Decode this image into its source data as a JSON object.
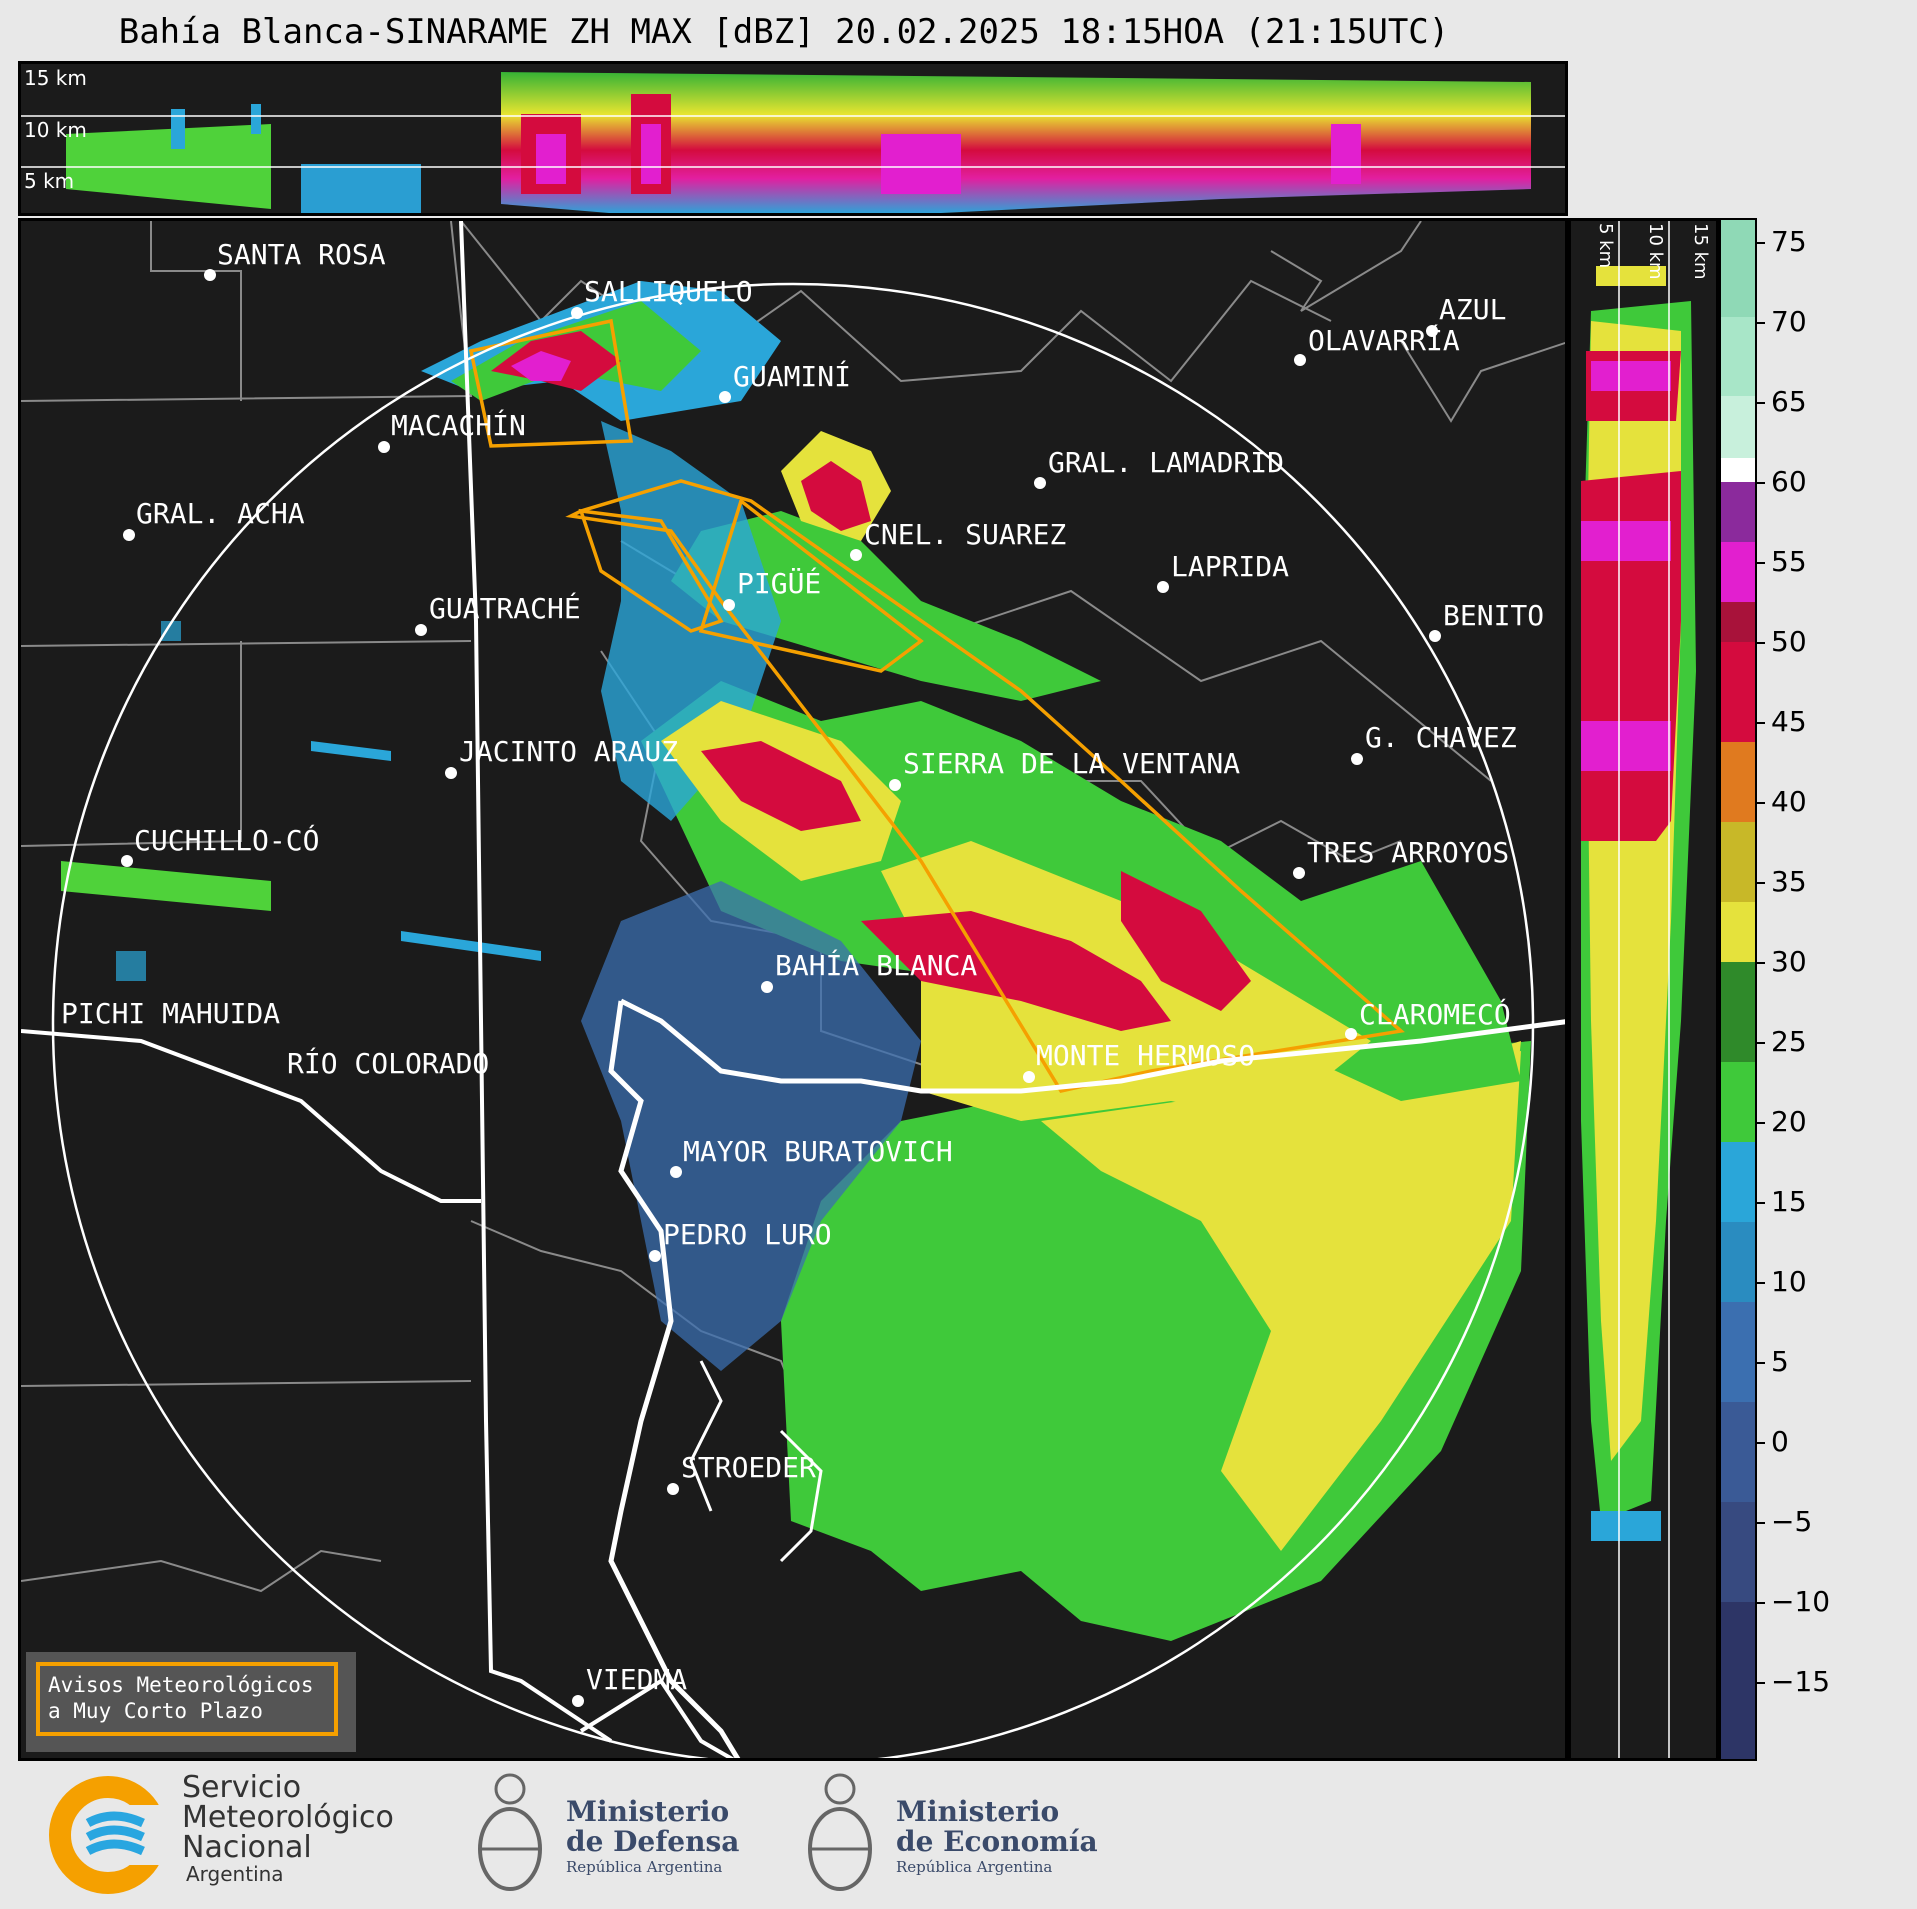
{
  "title": "Bahía Blanca-SINARAME ZH MAX [dBZ] 20.02.2025 18:15HOA (21:15UTC)",
  "top_panel": {
    "km_labels": [
      "15 km",
      "10 km",
      "5 km"
    ]
  },
  "side_panel": {
    "km_labels": [
      "5 km",
      "10 km",
      "15 km"
    ]
  },
  "cities": [
    "SANTA ROSA",
    "SALLIQUELO",
    "AZUL",
    "OLAVARRÍA",
    "GUAMINÍ",
    "MACACHÍN",
    "GRAL. LAMADRID",
    "GRAL. ACHA",
    "CNEL. SUAREZ",
    "LAPRIDA",
    "PIGÜÉ",
    "GUATRACHÉ",
    "BENITO",
    "JACINTO ARAUZ",
    "G. CHAVEZ",
    "SIERRA DE LA VENTANA",
    "CUCHILLO-CÓ",
    "TRES ARROYOS",
    "BAHÍA BLANCA",
    "PICHI MAHUIDA",
    "CLAROMECÓ",
    "RÍO COLORADO",
    "MONTE HERMOSO",
    "MAYOR BURATOVICH",
    "PEDRO LURO",
    "STROEDER",
    "VIEDMA"
  ],
  "colorbar": {
    "unit": "dBZ",
    "ticks": [
      "75",
      "70",
      "65",
      "60",
      "55",
      "50",
      "45",
      "40",
      "35",
      "30",
      "25",
      "20",
      "15",
      "10",
      "5",
      "0",
      "−5",
      "−10",
      "−15"
    ],
    "range": [
      -20,
      77
    ]
  },
  "warning_box": {
    "line1": "Avisos Meteorológicos",
    "line2": "a Muy Corto Plazo"
  },
  "logos": {
    "smn": {
      "line1": "Servicio",
      "line2": "Meteorológico",
      "line3": "Nacional",
      "line4": "Argentina"
    },
    "defensa": {
      "line1": "Ministerio",
      "line2": "de Defensa",
      "line3": "República Argentina"
    },
    "economia": {
      "line1": "Ministerio",
      "line2": "de Economía",
      "line3": "República Argentina"
    }
  },
  "colors": {
    "background": "#1b1b1b",
    "warning_orange": "#f5a000",
    "smn_orange": "#f5a000",
    "smn_blue": "#29a6e0"
  }
}
